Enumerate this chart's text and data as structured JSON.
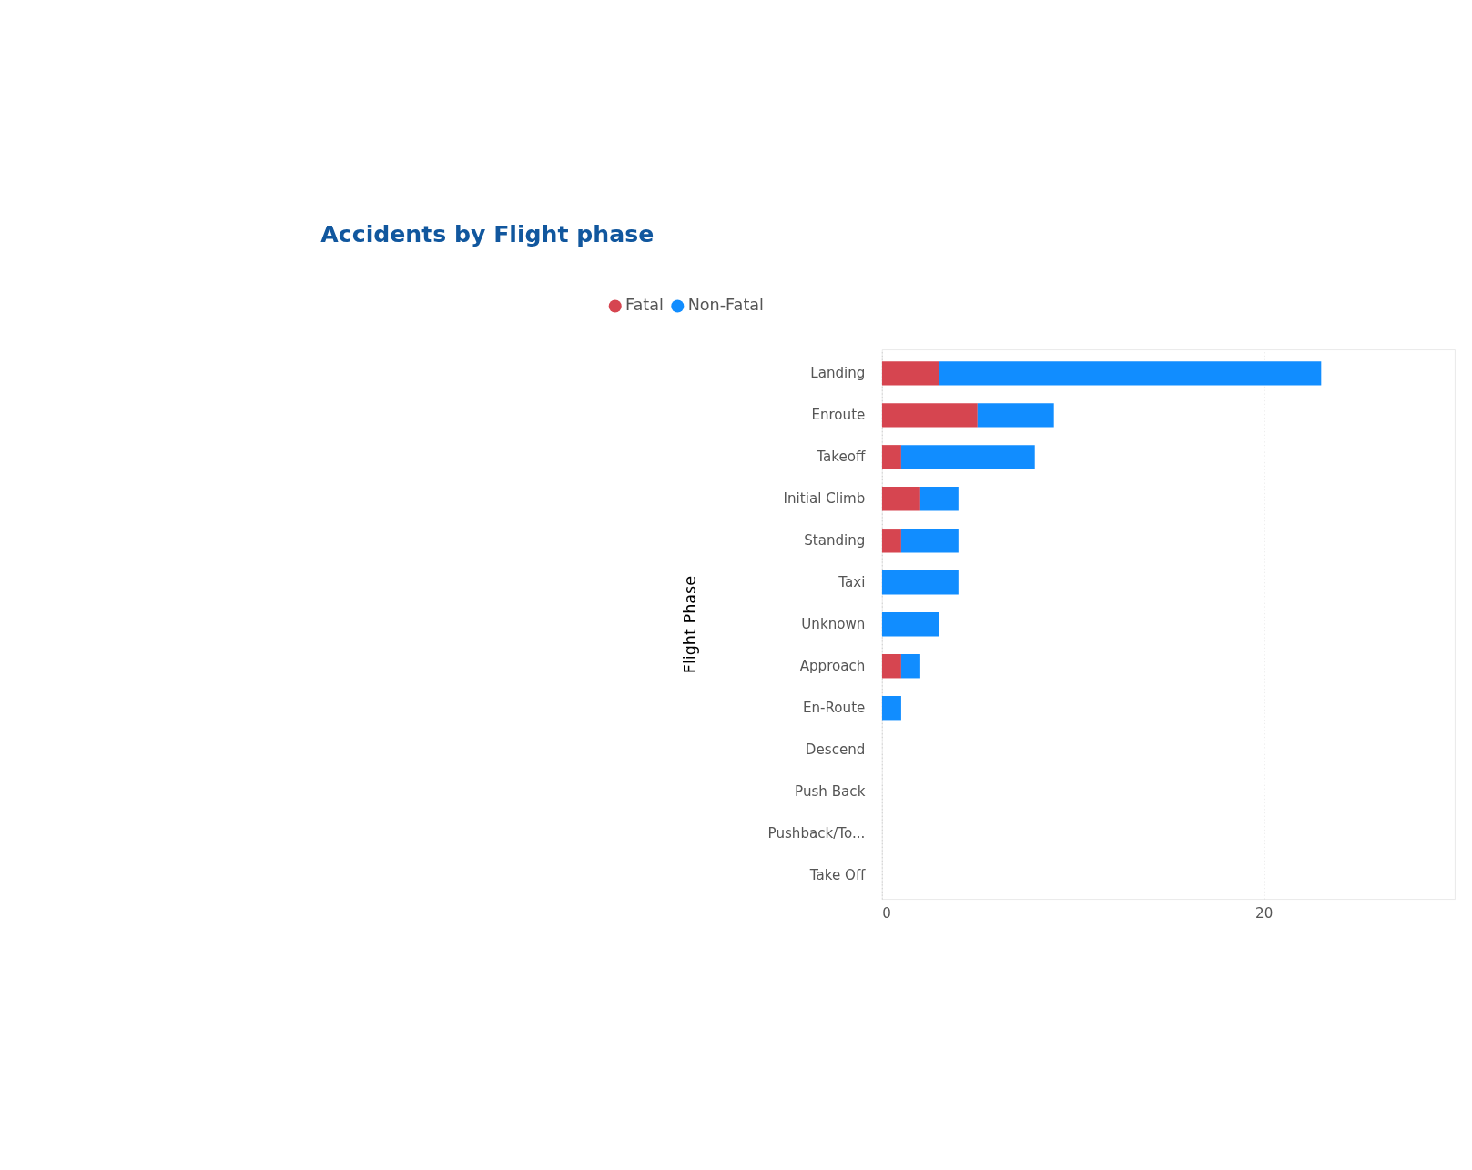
{
  "chart_data": {
    "type": "bar",
    "title": "Accidents by Flight phase",
    "ylabel": "Flight Phase",
    "orientation": "horizontal",
    "stacked": true,
    "categories": [
      "Landing",
      "Enroute",
      "Takeoff",
      "Initial Climb",
      "Standing",
      "Taxi",
      "Unknown",
      "Approach",
      "En-Route",
      "Descend",
      "Push Back",
      "Pushback/To...",
      "Take Off"
    ],
    "series": [
      {
        "name": "Fatal",
        "color": "#d64550",
        "values": [
          3,
          5,
          1,
          2,
          1,
          0,
          0,
          1,
          0,
          0,
          0,
          0,
          0
        ]
      },
      {
        "name": "Non-Fatal",
        "color": "#118dff",
        "values": [
          20,
          4,
          7,
          2,
          3,
          4,
          3,
          1,
          1,
          0,
          0,
          0,
          0
        ]
      }
    ],
    "xlim": [
      0,
      30
    ],
    "xticks": [
      0,
      20
    ],
    "grid": "x",
    "legend": "top left"
  }
}
